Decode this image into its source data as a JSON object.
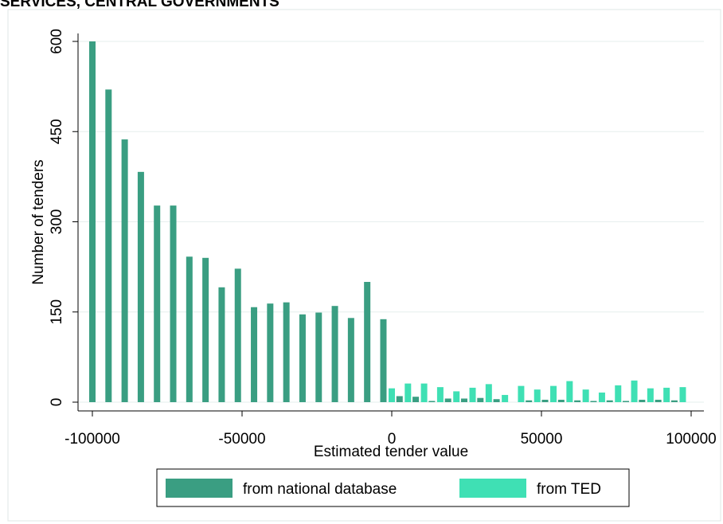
{
  "page": {
    "title": "SERVICES, CENTRAL GOVERNMENTS"
  },
  "colors": {
    "national": "#3a9e82",
    "ted": "#3fe0b4",
    "grid": "#e6efee",
    "panel_border": "#dfe7e6"
  },
  "chart_data": {
    "type": "bar",
    "title": "",
    "xlabel": "Estimated tender value",
    "ylabel": "Number of tenders",
    "xlim": [
      -100000,
      100000
    ],
    "ylim": [
      0,
      600
    ],
    "xticks": [
      -100000,
      -50000,
      0,
      50000,
      100000
    ],
    "xtick_labels": [
      "-100000",
      "-50000",
      "0",
      "50000",
      "100000"
    ],
    "yticks": [
      0,
      150,
      300,
      450,
      600
    ],
    "ytick_labels": [
      "0",
      "150",
      "300",
      "450",
      "600"
    ],
    "grid": true,
    "legend_position": "bottom",
    "series": [
      {
        "name": "from national database",
        "color": "#3a9e82",
        "x": [
          -100000,
          -94600,
          -89200,
          -83800,
          -78400,
          -73000,
          -67600,
          -62200,
          -56800,
          -51400,
          -46000,
          -40600,
          -35200,
          -29800,
          -24400,
          -19000,
          -13600,
          -8200,
          -2800,
          2600,
          8000,
          13400,
          18800,
          24200,
          29600,
          35000,
          40400,
          45800,
          51200,
          56600,
          62000,
          67400,
          72800,
          78200,
          83600,
          89000,
          94400
        ],
        "values": [
          600,
          520,
          437,
          383,
          327,
          327,
          242,
          240,
          191,
          222,
          158,
          164,
          166,
          146,
          149,
          160,
          140,
          200,
          138,
          10,
          9,
          2,
          6,
          6,
          7,
          5,
          0,
          3,
          4,
          4,
          3,
          2,
          3,
          2,
          4,
          4,
          3
        ]
      },
      {
        "name": "from TED",
        "color": "#3fe0b4",
        "x": [
          0,
          5400,
          10800,
          16200,
          21600,
          27000,
          32400,
          37800,
          43200,
          48600,
          54000,
          59400,
          64800,
          70200,
          75600,
          81000,
          86400,
          91800,
          97200
        ],
        "values": [
          23,
          31,
          31,
          25,
          18,
          24,
          30,
          12,
          27,
          21,
          27,
          35,
          21,
          16,
          28,
          36,
          23,
          24,
          25
        ]
      }
    ]
  }
}
